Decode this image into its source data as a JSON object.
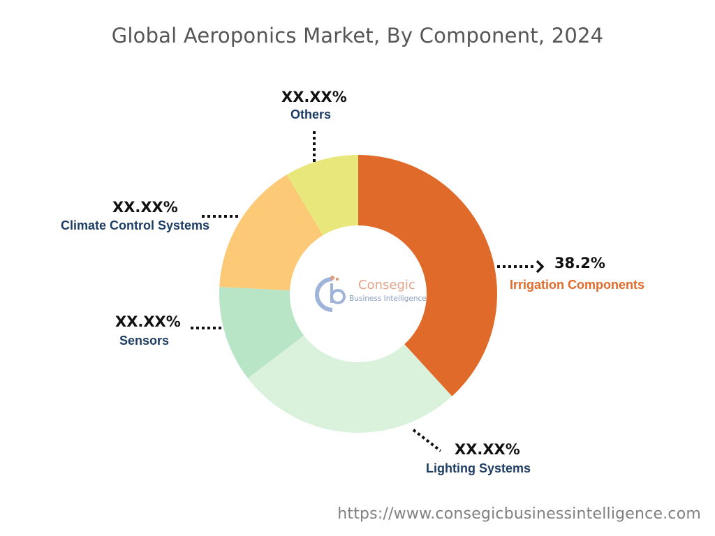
{
  "chart_data": {
    "type": "pie",
    "title": "Global Aeroponics Market, By Component, 2024",
    "slices": [
      {
        "name": "Irrigation Components",
        "label": "38.2%",
        "value": 38.2,
        "color": "#e06a2a"
      },
      {
        "name": "Lighting Systems",
        "label": "XX.XX%",
        "value": 26.4,
        "color": "#daf2dc"
      },
      {
        "name": "Sensors",
        "label": "XX.XX%",
        "value": 11.2,
        "color": "#b7e5c6"
      },
      {
        "name": "Climate Control Systems",
        "label": "XX.XX%",
        "value": 15.6,
        "color": "#fcc976"
      },
      {
        "name": "Others",
        "label": "XX.XX%",
        "value": 8.6,
        "color": "#e7e77c"
      }
    ]
  },
  "watermark": {
    "name": "Consegic",
    "tagline": "Business Intelligence"
  },
  "footer": {
    "url": "https://www.consegicbusinessintelligence.com"
  }
}
